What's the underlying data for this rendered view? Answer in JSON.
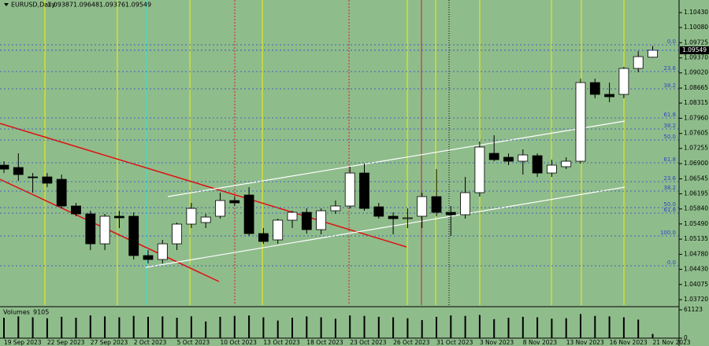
{
  "chart_data": [
    {
      "type": "candlestick",
      "title": "EURUSD,Daily",
      "categories": [
        "19 Sep 2023",
        null,
        null,
        "22 Sep 2023",
        null,
        null,
        "27 Sep 2023",
        null,
        null,
        "2 Oct 2023",
        null,
        null,
        "5 Oct 2023",
        null,
        null,
        "10 Oct 2023",
        null,
        null,
        "13 Oct 2023",
        null,
        null,
        "18 Oct 2023",
        null,
        null,
        "23 Oct 2023",
        null,
        null,
        "26 Oct 2023",
        null,
        null,
        "31 Oct 2023",
        null,
        null,
        "3 Nov 2023",
        null,
        null,
        "8 Nov 2023",
        null,
        null,
        "13 Nov 2023",
        null,
        null,
        "16 Nov 2023",
        null,
        null,
        "21 Nov 2023"
      ],
      "open": [
        1.06864,
        1.06809,
        1.06589,
        1.06589,
        1.06533,
        1.05909,
        1.05725,
        1.05026,
        1.0567,
        1.0567,
        1.04751,
        1.04659,
        1.05026,
        1.05486,
        1.05523,
        1.0567,
        1.06037,
        1.06166,
        1.05265,
        1.05118,
        1.05578,
        1.05761,
        1.05357,
        1.05798,
        1.05909,
        1.0668,
        1.0589,
        1.0567,
        1.05633,
        1.0567,
        1.06129,
        1.05761,
        1.05706,
        1.06221,
        1.0714,
        1.07048,
        1.06956,
        1.07085,
        1.0668,
        1.06828,
        1.06956,
        1.08794,
        1.08518,
        1.08518,
        1.09125,
        1.09387
      ],
      "high": [
        1.06956,
        1.0714,
        1.0668,
        1.0668,
        1.06644,
        1.05982,
        1.05798,
        1.05725,
        1.05798,
        1.05761,
        1.04879,
        1.05118,
        1.05523,
        1.05982,
        1.05725,
        1.06221,
        1.06129,
        1.0635,
        1.05394,
        1.05614,
        1.05798,
        1.05853,
        1.05853,
        1.06037,
        1.06828,
        1.06901,
        1.05982,
        1.05761,
        1.05853,
        1.06221,
        1.06772,
        1.05909,
        1.06589,
        1.07416,
        1.07563,
        1.0714,
        1.07232,
        1.0714,
        1.06993,
        1.07048,
        1.08886,
        1.08886,
        1.08794,
        1.09162,
        1.0953,
        1.09648
      ],
      "low": [
        1.0668,
        1.06497,
        1.06221,
        1.0635,
        1.05853,
        1.0567,
        1.04879,
        1.04879,
        1.05394,
        1.04659,
        1.04567,
        1.04567,
        1.04879,
        1.05394,
        1.05394,
        1.05614,
        1.05909,
        1.0521,
        1.05026,
        1.05026,
        1.05394,
        1.05265,
        1.05247,
        1.05725,
        1.05853,
        1.05798,
        1.05614,
        1.05247,
        1.05394,
        1.05394,
        1.0567,
        1.0521,
        1.05614,
        1.06129,
        1.06956,
        1.06864,
        1.06644,
        1.06589,
        1.06589,
        1.06772,
        1.06901,
        1.08427,
        1.08335,
        1.08427,
        1.09033,
        1.09376
      ],
      "close": [
        1.06772,
        1.06644,
        1.0657,
        1.06442,
        1.05909,
        1.05725,
        1.05026,
        1.0567,
        1.05633,
        1.04751,
        1.04659,
        1.05026,
        1.05486,
        1.05853,
        1.05651,
        1.06037,
        1.05982,
        1.05265,
        1.05081,
        1.05578,
        1.05761,
        1.05357,
        1.05798,
        1.05909,
        1.0668,
        1.05853,
        1.0567,
        1.05614,
        1.05633,
        1.06129,
        1.05761,
        1.05706,
        1.06221,
        1.07287,
        1.06993,
        1.06956,
        1.07103,
        1.0668,
        1.06864,
        1.06956,
        1.08794,
        1.08518,
        1.08463,
        1.09125,
        1.09401,
        1.09549
      ],
      "ylim": [
        1.03593,
        1.10724
      ],
      "yticks": [
        {
          "value": 1.1043,
          "label": "1.10430"
        },
        {
          "value": 1.1008,
          "label": "1.10080"
        },
        {
          "value": 1.09725,
          "label": "1.09725"
        },
        {
          "value": 1.0937,
          "label": "1.09370"
        },
        {
          "value": 1.0902,
          "label": "1.09020"
        },
        {
          "value": 1.08665,
          "label": "1.08665"
        },
        {
          "value": 1.08315,
          "label": "1.08315"
        },
        {
          "value": 1.0796,
          "label": "1.07960"
        },
        {
          "value": 1.07605,
          "label": "1.07605"
        },
        {
          "value": 1.07255,
          "label": "1.07255"
        },
        {
          "value": 1.069,
          "label": "1.06900"
        },
        {
          "value": 1.06545,
          "label": "1.06545"
        },
        {
          "value": 1.06195,
          "label": "1.06195"
        },
        {
          "value": 1.0584,
          "label": "1.05840"
        },
        {
          "value": 1.0549,
          "label": "1.05490"
        },
        {
          "value": 1.05135,
          "label": "1.05135"
        },
        {
          "value": 1.0478,
          "label": "1.04780"
        },
        {
          "value": 1.0443,
          "label": "1.04430"
        },
        {
          "value": 1.04075,
          "label": "1.04075"
        },
        {
          "value": 1.0372,
          "label": "1.03720"
        }
      ],
      "levels": [
        {
          "label": "0.0",
          "value": 1.09676
        },
        {
          "label": "23.6",
          "value": 1.09052
        },
        {
          "label": "38.2",
          "value": 1.08647
        },
        {
          "label": "61.8",
          "value": 1.07967
        },
        {
          "label": "38.2",
          "value": 1.0771
        },
        {
          "label": "50.0",
          "value": 1.07452
        },
        {
          "label": "61.8",
          "value": 1.06919
        },
        {
          "label": "23.6",
          "value": 1.06478
        },
        {
          "label": "38.2",
          "value": 1.06258
        },
        {
          "label": "50.0",
          "value": 1.05872
        },
        {
          "label": "61.8",
          "value": 1.05743
        },
        {
          "label": "100.0",
          "value": 1.0521
        },
        {
          "label": "0.0",
          "value": 1.04512
        }
      ],
      "up_color": "#ffffff",
      "down_color": "#000000"
    },
    {
      "type": "bar",
      "title": "Volumes",
      "values": [
        44000,
        47000,
        45000,
        43000,
        46000,
        44000,
        49000,
        47000,
        45000,
        48000,
        46000,
        47000,
        44000,
        47000,
        36000,
        46000,
        48000,
        49000,
        45000,
        38000,
        44000,
        47000,
        45000,
        42000,
        49000,
        48000,
        46000,
        45000,
        43000,
        39000,
        46000,
        49000,
        48000,
        50000,
        41000,
        44000,
        46000,
        45000,
        42000,
        43000,
        52000,
        48000,
        47000,
        45000,
        40000,
        9105
      ],
      "ylim": [
        0,
        61123
      ],
      "yticks": [
        61123,
        0
      ],
      "color": "#000000"
    }
  ]
}
